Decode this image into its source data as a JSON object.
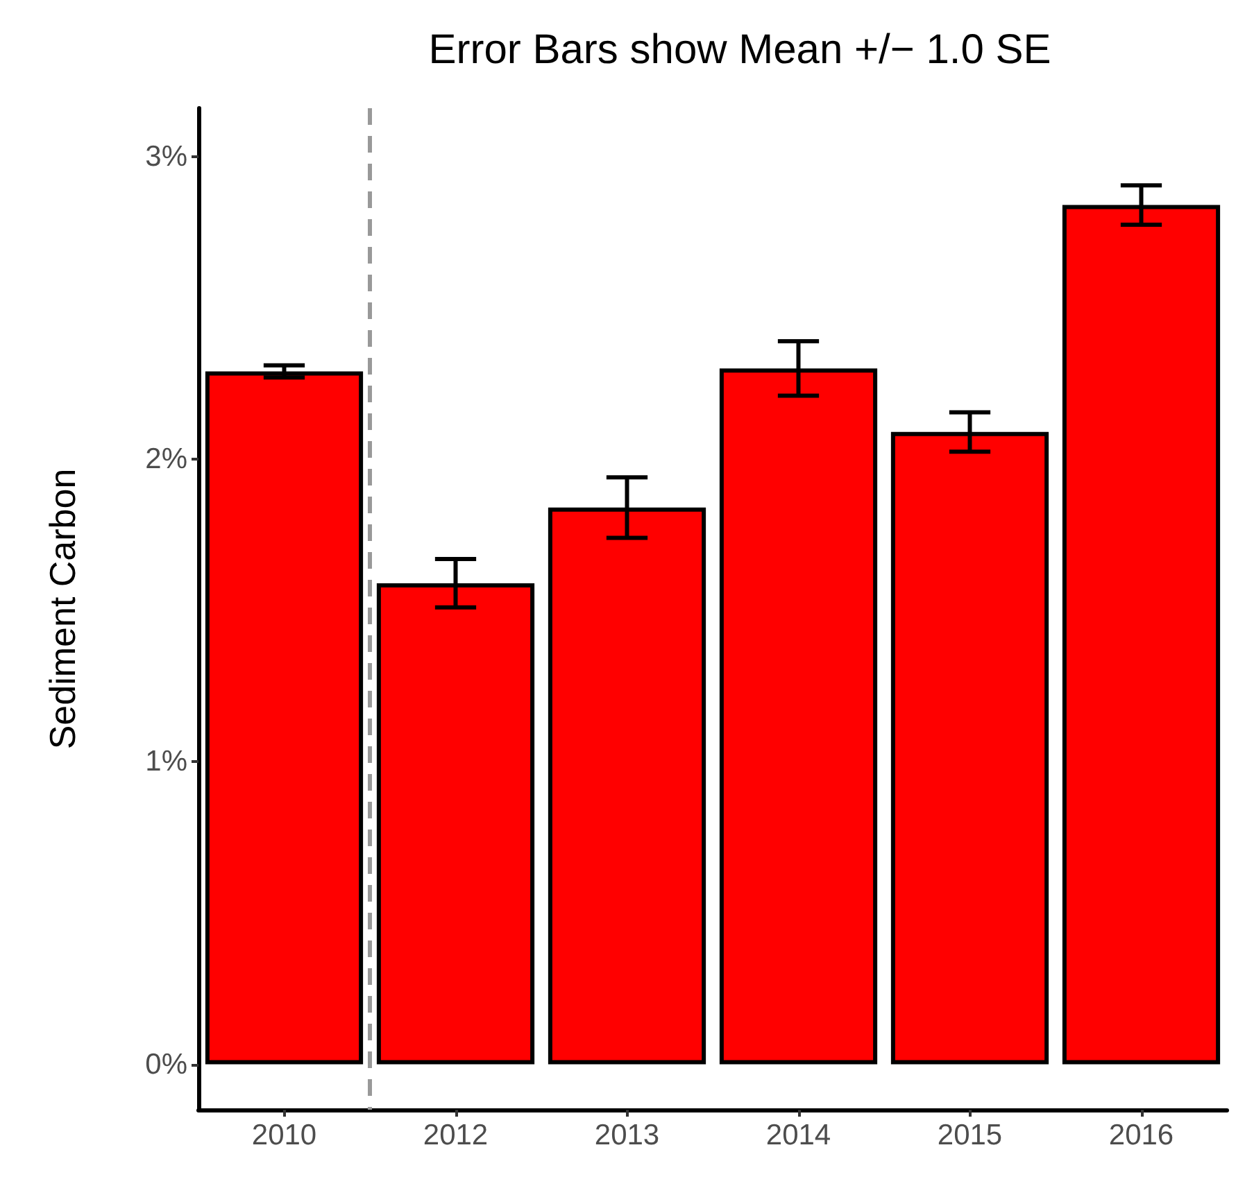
{
  "chart_data": {
    "type": "bar",
    "title": "Error Bars show Mean +/− 1.0 SE",
    "ylabel": "Sediment Carbon",
    "categories": [
      "2010",
      "2012",
      "2013",
      "2014",
      "2015",
      "2016"
    ],
    "values": [
      2.29,
      1.59,
      1.84,
      2.3,
      2.09,
      2.84
    ],
    "errors": [
      0.02,
      0.08,
      0.1,
      0.09,
      0.065,
      0.065
    ],
    "color": "#ff0000",
    "ylim": [
      -0.15,
      3.16
    ],
    "yticks": [
      {
        "value": 0,
        "label": "0%"
      },
      {
        "value": 1,
        "label": "1%"
      },
      {
        "value": 2,
        "label": "2%"
      },
      {
        "value": 3,
        "label": "3%"
      }
    ],
    "grid": false
  }
}
